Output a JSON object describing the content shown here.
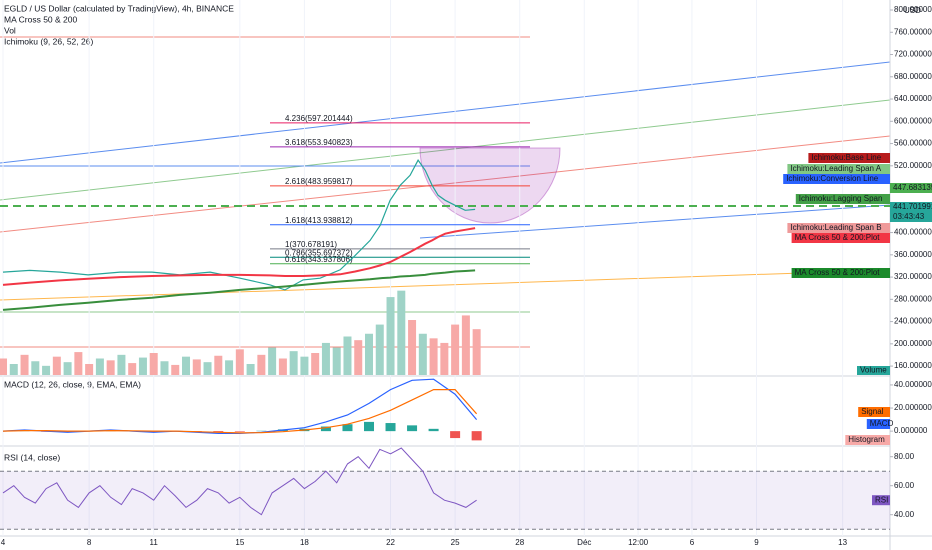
{
  "header": {
    "indicators": [
      "MA Cross 50 & 200",
      "Vol",
      "Ichimoku (9, 26, 52, 26)"
    ]
  },
  "chart_data": [
    {
      "type": "line",
      "title": "EGLD / US Dollar (calculated by TradingView), 4h, BINANCE",
      "y_label": "USD",
      "xlim": [
        -0.14,
        41.2
      ],
      "ylim": [
        144,
        818
      ],
      "xticks": [
        {
          "value": 0,
          "label": "4"
        },
        {
          "value": 4,
          "label": "8"
        },
        {
          "value": 7,
          "label": "11"
        },
        {
          "value": 11,
          "label": "15"
        },
        {
          "value": 14,
          "label": "18"
        },
        {
          "value": 18,
          "label": "22"
        },
        {
          "value": 21,
          "label": "25"
        },
        {
          "value": 24,
          "label": "28"
        },
        {
          "value": 27,
          "label": "Déc"
        },
        {
          "value": 29.5,
          "label": "12:00"
        },
        {
          "value": 32,
          "label": "6"
        },
        {
          "value": 35,
          "label": "9"
        },
        {
          "value": 39,
          "label": "13"
        }
      ],
      "yticks": [
        {
          "value": 160,
          "label": "160.000000"
        },
        {
          "value": 200,
          "label": "200.000000"
        },
        {
          "value": 240,
          "label": "240.000000"
        },
        {
          "value": 280,
          "label": "280.000000"
        },
        {
          "value": 320,
          "label": "320.000000"
        },
        {
          "value": 360,
          "label": "360.000000"
        },
        {
          "value": 400,
          "label": "400.000000"
        },
        {
          "value": 440,
          "label": "440.000000"
        },
        {
          "value": 480,
          "label": "480.000000"
        },
        {
          "value": 520,
          "label": "520.000000"
        },
        {
          "value": 560,
          "label": "560.000000"
        },
        {
          "value": 600,
          "label": "600.000000"
        },
        {
          "value": 640,
          "label": "640.000000"
        },
        {
          "value": 680,
          "label": "680.000000"
        },
        {
          "value": 720,
          "label": "720.000000"
        },
        {
          "value": 760,
          "label": "760.000000"
        },
        {
          "value": 800,
          "label": "800.000000"
        }
      ],
      "x": [
        0,
        1.25,
        2.65,
        3.95,
        5.44,
        6.92,
        8.22,
        9.62,
        11.01,
        12.41,
        13.1,
        13.94,
        14.73,
        15.66,
        16.36,
        17.05,
        17.52,
        17.98,
        18.45,
        18.91,
        19.28,
        19.61,
        19.93,
        20.21,
        20.54,
        21.0,
        21.47,
        21.93
      ],
      "series": [
        {
          "color": "#26a69a",
          "values": [
            329,
            332,
            329,
            324,
            329,
            329,
            324,
            329,
            318,
            306,
            297,
            315,
            318,
            333,
            359,
            386,
            413,
            458,
            485,
            503,
            530,
            512,
            485,
            467,
            458,
            449,
            440,
            441.7
          ]
        },
        {
          "color": "#f23645",
          "values": [
            306,
            310,
            314,
            317,
            320,
            322,
            323,
            324,
            324,
            323,
            322,
            322,
            323,
            325,
            330,
            336,
            341,
            347,
            356,
            365,
            373,
            380,
            386,
            392,
            398,
            402,
            405,
            408
          ]
        },
        {
          "color": "#388e3c",
          "values": [
            261,
            265,
            270,
            274,
            279,
            283,
            288,
            292,
            297,
            301,
            303,
            306,
            309,
            312,
            314,
            316,
            318,
            319,
            321,
            322,
            323,
            324,
            326,
            327,
            328,
            330,
            331,
            332
          ]
        }
      ],
      "fib": [
        {
          "label": "4.236(597.201444)",
          "value": 597.201444,
          "color": "#e91e63"
        },
        {
          "label": "3.618(553.940823)",
          "value": 553.940823,
          "color": "#9c27b0"
        },
        {
          "label": "2.618(483.959817)",
          "value": 483.959817,
          "color": "#f44336"
        },
        {
          "label": "1.618(413.938812)",
          "value": 413.938812,
          "color": "#2962ff"
        },
        {
          "label": "1(370.678191)",
          "value": 370.678191,
          "color": "#787b86"
        },
        {
          "label": "0.786(355.697372)",
          "value": 355.697372,
          "color": "#00897b"
        },
        {
          "label": "0.618(343.937806)",
          "value": 343.937806,
          "color": "#4caf50"
        }
      ],
      "level": {
        "value": 447.683135,
        "color": "#4caf50"
      },
      "last": {
        "value": 441.701991,
        "countdown": "03:43:43",
        "color": "#26a69a"
      },
      "tags": [
        {
          "label": "Ichimoku:Base Line",
          "color": "#b71c1c"
        },
        {
          "label": "Ichimoku:Leading Span A",
          "color": "#81c784"
        },
        {
          "label": "Ichimoku:Conversion Line",
          "color": "#2962ff"
        },
        {
          "label": "Ichimoku:Lagging Span",
          "color": "#43a047"
        },
        {
          "label": "Ichimoku:Leading Span B",
          "color": "#ef9a9a"
        },
        {
          "label": "MA Cross 50 & 200:Plot",
          "color": "#f23645"
        },
        {
          "label": "MA Cross 50 & 200:Plot",
          "color": "#1b8a2b"
        }
      ],
      "volume": {
        "label": "Volume",
        "ylim": [
          0,
          120
        ],
        "x": [
          0,
          0.5,
          1,
          1.5,
          2,
          2.5,
          3,
          3.5,
          4,
          4.5,
          5,
          5.5,
          6,
          6.5,
          7,
          7.5,
          8,
          8.5,
          9,
          9.5,
          10,
          10.5,
          11,
          11.5,
          12,
          12.5,
          13,
          13.5,
          14,
          14.5,
          15,
          15.5,
          16,
          16.5,
          17,
          17.5,
          18,
          18.5,
          19,
          19.5,
          20,
          20.5,
          21,
          21.5,
          22
        ],
        "values": [
          18,
          12,
          22,
          15,
          10,
          20,
          14,
          25,
          12,
          18,
          16,
          22,
          13,
          19,
          24,
          15,
          11,
          20,
          17,
          14,
          21,
          16,
          28,
          12,
          22,
          30,
          18,
          26,
          20,
          24,
          35,
          30,
          42,
          38,
          45,
          55,
          85,
          92,
          60,
          45,
          40,
          35,
          55,
          65,
          50
        ],
        "colors": [
          "#f7a9a7",
          "#9fd3c7",
          "#f7a9a7",
          "#9fd3c7",
          "#9fd3c7",
          "#f7a9a7",
          "#9fd3c7",
          "#f7a9a7",
          "#f7a9a7",
          "#9fd3c7",
          "#f7a9a7",
          "#9fd3c7",
          "#f7a9a7",
          "#9fd3c7",
          "#f7a9a7",
          "#9fd3c7",
          "#f7a9a7",
          "#9fd3c7",
          "#f7a9a7",
          "#9fd3c7",
          "#f7a9a7",
          "#9fd3c7",
          "#f7a9a7",
          "#9fd3c7",
          "#f7a9a7",
          "#9fd3c7",
          "#f7a9a7",
          "#9fd3c7",
          "#9fd3c7",
          "#f7a9a7",
          "#9fd3c7",
          "#9fd3c7",
          "#9fd3c7",
          "#f7a9a7",
          "#9fd3c7",
          "#9fd3c7",
          "#9fd3c7",
          "#9fd3c7",
          "#f7a9a7",
          "#9fd3c7",
          "#f7a9a7",
          "#f7a9a7",
          "#f7a9a7",
          "#f7a9a7",
          "#f7a9a7"
        ]
      }
    },
    {
      "type": "macd",
      "title": "MACD (12, 26, close, 9, EMA, EMA)",
      "ylim": [
        -12,
        46
      ],
      "yticks": [
        {
          "value": 0,
          "label": "0.000000"
        },
        {
          "value": 20,
          "label": "20.000000"
        },
        {
          "value": 40,
          "label": "40.000000"
        }
      ],
      "x": [
        0,
        1,
        2,
        3,
        4,
        5,
        6,
        7,
        8,
        9,
        10,
        11,
        12,
        13,
        14,
        15,
        16,
        17,
        18,
        19,
        20,
        21,
        22
      ],
      "series": [
        {
          "name": "MACD",
          "color": "#2962ff",
          "values": [
            0,
            1,
            0,
            -1,
            0,
            1,
            0,
            -1,
            0,
            -1,
            -2,
            -2,
            -1,
            1,
            3,
            8,
            14,
            24,
            36,
            44,
            45,
            32,
            10
          ]
        },
        {
          "name": "Signal",
          "color": "#ff6d00",
          "values": [
            0,
            0.5,
            0.5,
            0,
            0,
            0.5,
            0.3,
            0,
            0,
            -0.5,
            -1,
            -1.5,
            -1.3,
            -0.5,
            1,
            3,
            6,
            11,
            18,
            27,
            36,
            36,
            15
          ]
        }
      ],
      "histogram": {
        "name": "Histogram",
        "colors": [
          "#26a69a",
          "#ef5350"
        ],
        "values": [
          0,
          0.5,
          -0.5,
          -1,
          0,
          0.5,
          -0.3,
          -1,
          0,
          -0.5,
          -1,
          -0.5,
          0.3,
          1.5,
          2,
          4,
          6,
          8,
          7,
          5,
          2,
          -6,
          -8
        ]
      }
    },
    {
      "type": "rsi",
      "title": "RSI (14, close)",
      "ylim": [
        26,
        86
      ],
      "yticks": [
        {
          "value": 40,
          "label": "40.00"
        },
        {
          "value": 60,
          "label": "60.00"
        },
        {
          "value": 80,
          "label": "80.00"
        }
      ],
      "bands": [
        30,
        70
      ],
      "x": [
        0,
        0.5,
        1,
        1.5,
        2,
        2.5,
        3,
        3.5,
        4,
        4.5,
        5,
        5.5,
        6,
        6.5,
        7,
        7.5,
        8,
        8.5,
        9,
        9.5,
        10,
        10.5,
        11,
        11.5,
        12,
        12.5,
        13,
        13.5,
        14,
        14.5,
        15,
        15.5,
        16,
        16.5,
        17,
        17.5,
        18,
        18.5,
        19,
        19.5,
        20,
        20.5,
        21,
        21.5,
        22
      ],
      "series": [
        {
          "name": "RSI",
          "color": "#7e57c2",
          "values": [
            55,
            60,
            52,
            48,
            58,
            62,
            50,
            45,
            55,
            60,
            52,
            47,
            58,
            55,
            50,
            60,
            53,
            45,
            50,
            58,
            55,
            48,
            52,
            45,
            40,
            55,
            60,
            65,
            58,
            63,
            70,
            62,
            75,
            80,
            72,
            85,
            82,
            86,
            78,
            70,
            55,
            50,
            48,
            45,
            50
          ]
        }
      ]
    }
  ]
}
